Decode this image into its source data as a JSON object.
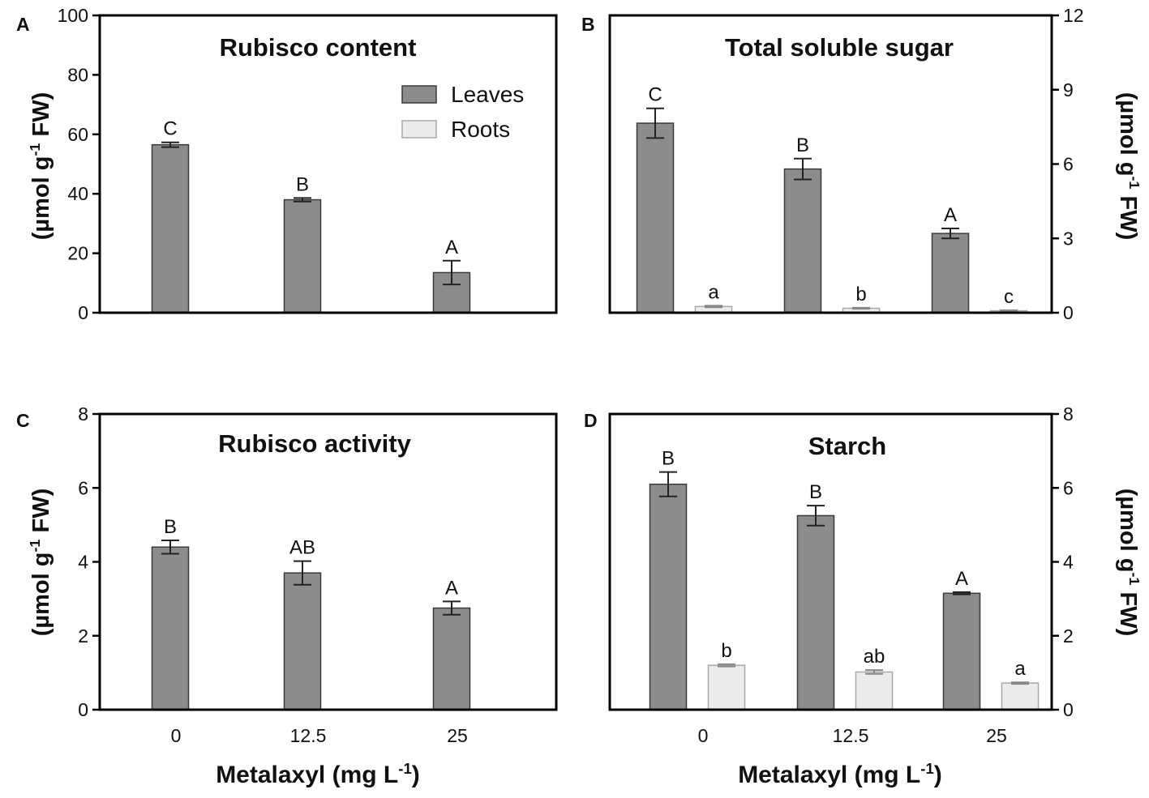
{
  "chart_data": [
    {
      "panel": "A",
      "type": "bar",
      "title": "Rubisco content",
      "ylabel": "(µmol g-1 FW)",
      "y_axis_side": "left",
      "ylim": [
        0,
        100
      ],
      "yticks": [
        0,
        20,
        40,
        60,
        80,
        100
      ],
      "categories": [
        "0",
        "12.5",
        "25"
      ],
      "show_x_tick_labels": false,
      "xlabel": "",
      "legend": {
        "entries": [
          "Leaves",
          "Roots"
        ],
        "position": "top-right"
      },
      "series": [
        {
          "name": "Leaves",
          "color": "#8c8c8c",
          "values": [
            56.5,
            38,
            13.5
          ],
          "errors": [
            0.8,
            0.6,
            4
          ],
          "letters": [
            "C",
            "B",
            "A"
          ]
        }
      ]
    },
    {
      "panel": "B",
      "type": "bar",
      "title": "Total soluble sugar",
      "ylabel": "(µmol g-1 FW)",
      "y_axis_side": "right",
      "ylim": [
        0,
        12
      ],
      "yticks": [
        0,
        3,
        6,
        9,
        12
      ],
      "categories": [
        "0",
        "12.5",
        "25"
      ],
      "show_x_tick_labels": false,
      "xlabel": "",
      "series": [
        {
          "name": "Leaves",
          "color": "#8c8c8c",
          "values": [
            7.65,
            5.8,
            3.2
          ],
          "errors": [
            0.6,
            0.42,
            0.2
          ],
          "letters": [
            "C",
            "B",
            "A"
          ]
        },
        {
          "name": "Roots",
          "color": "#ececec",
          "values": [
            0.25,
            0.18,
            0.08
          ],
          "errors": [
            0.03,
            0.02,
            0.02
          ],
          "letters": [
            "a",
            "b",
            "c"
          ]
        }
      ]
    },
    {
      "panel": "C",
      "type": "bar",
      "title": "Rubisco activity",
      "ylabel": "(µmol g-1 FW)",
      "y_axis_side": "left",
      "ylim": [
        0,
        8
      ],
      "yticks": [
        0,
        2,
        4,
        6,
        8
      ],
      "categories": [
        "0",
        "12.5",
        "25"
      ],
      "show_x_tick_labels": true,
      "xlabel": "Metalaxyl (mg L-1)",
      "series": [
        {
          "name": "Leaves",
          "color": "#8c8c8c",
          "values": [
            4.4,
            3.7,
            2.75
          ],
          "errors": [
            0.18,
            0.32,
            0.18
          ],
          "letters": [
            "B",
            "AB",
            "A"
          ]
        }
      ]
    },
    {
      "panel": "D",
      "type": "bar",
      "title": "Starch",
      "ylabel": "(µmol g-1 FW)",
      "y_axis_side": "right",
      "ylim": [
        0,
        8
      ],
      "yticks": [
        0,
        2,
        4,
        6,
        8
      ],
      "categories": [
        "0",
        "12.5",
        "25"
      ],
      "show_x_tick_labels": true,
      "xlabel": "Metalaxyl (mg L-1)",
      "series": [
        {
          "name": "Leaves",
          "color": "#8c8c8c",
          "values": [
            6.1,
            5.25,
            3.15
          ],
          "errors": [
            0.33,
            0.27,
            0.03
          ],
          "letters": [
            "B",
            "B",
            "A"
          ]
        },
        {
          "name": "Roots",
          "color": "#ececec",
          "values": [
            1.2,
            1.02,
            0.72
          ],
          "errors": [
            0.03,
            0.05,
            0.02
          ],
          "letters": [
            "b",
            "ab",
            "a"
          ]
        }
      ]
    }
  ]
}
